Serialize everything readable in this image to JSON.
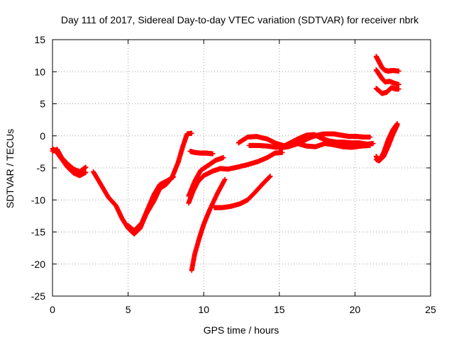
{
  "chart_data": {
    "type": "scatter",
    "title": "Day 111 of 2017, Sidereal Day-to-day VTEC variation (SDTVAR) for receiver nbrk",
    "xlabel": "GPS time / hours",
    "ylabel": "SDTVAR / TECUs",
    "xlim": [
      0,
      25
    ],
    "ylim": [
      -25,
      15
    ],
    "xticks": [
      "0",
      "5",
      "10",
      "15",
      "20",
      "25"
    ],
    "yticks": [
      "15",
      "10",
      "5",
      "0",
      "-5",
      "-10",
      "-15",
      "-20",
      "-25"
    ],
    "grid": true,
    "marker": "plus",
    "colors": {
      "series": "#ff0000",
      "grid": "#a0a0a0",
      "axis": "#000000"
    },
    "series": [
      {
        "x": [
          0.0,
          0.3,
          0.6,
          1.0,
          1.4,
          1.8,
          2.2
        ],
        "y": [
          -2.0,
          -2.6,
          -3.6,
          -4.9,
          -5.8,
          -6.2,
          -5.7
        ]
      },
      {
        "x": [
          0.0,
          0.3,
          0.6,
          1.0,
          1.4,
          1.8,
          2.2
        ],
        "y": [
          -2.4,
          -2.1,
          -3.4,
          -4.4,
          -5.2,
          -5.6,
          -4.9
        ]
      },
      {
        "x": [
          2.7,
          3.2,
          3.7,
          4.2,
          4.6,
          5.0,
          5.4,
          5.8,
          6.2,
          6.7,
          7.1,
          7.5,
          7.9,
          8.3,
          8.6,
          8.9,
          9.2
        ],
        "y": [
          -5.6,
          -7.6,
          -9.6,
          -10.9,
          -12.9,
          -14.4,
          -15.3,
          -14.4,
          -12.2,
          -10.2,
          -8.2,
          -7.6,
          -6.5,
          -4.2,
          -1.8,
          0.3,
          0.4
        ]
      },
      {
        "x": [
          5.0,
          5.4,
          5.9,
          6.3,
          6.7,
          7.1,
          7.6,
          8.0
        ],
        "y": [
          -14.0,
          -14.8,
          -13.6,
          -11.4,
          -9.2,
          -7.6,
          -7.0,
          -6.4
        ]
      },
      {
        "x": [
          9.0,
          9.3,
          9.6,
          10.0,
          10.6,
          11.1,
          11.6,
          12.2,
          12.9,
          13.6,
          14.2,
          14.7,
          15.2
        ],
        "y": [
          -10.5,
          -8.6,
          -7.2,
          -6.2,
          -5.5,
          -5.1,
          -5.2,
          -4.9,
          -4.5,
          -4.0,
          -3.4,
          -2.7,
          -2.6
        ]
      },
      {
        "x": [
          9.0,
          9.4,
          9.8,
          10.3,
          10.8,
          11.3
        ],
        "y": [
          -9.4,
          -7.1,
          -5.4,
          -4.6,
          -3.8,
          -3.4
        ]
      },
      {
        "x": [
          9.1,
          9.4,
          9.8,
          10.2,
          10.6
        ],
        "y": [
          -2.4,
          -2.6,
          -2.7,
          -2.7,
          -2.8
        ]
      },
      {
        "x": [
          9.2,
          9.4,
          9.7,
          10.0,
          10.4,
          10.9,
          11.4
        ],
        "y": [
          -21.0,
          -18.5,
          -16.0,
          -13.8,
          -11.5,
          -9.0,
          -6.8
        ]
      },
      {
        "x": [
          10.7,
          11.2,
          11.8,
          12.4,
          12.9,
          13.4,
          13.9,
          14.4
        ],
        "y": [
          -11.2,
          -11.2,
          -11.0,
          -10.6,
          -10.0,
          -8.8,
          -7.5,
          -6.3
        ]
      },
      {
        "x": [
          12.3,
          12.9,
          13.5,
          14.2,
          14.8,
          15.4,
          16.0,
          16.5,
          17.0,
          17.5,
          18.0,
          18.6,
          19.1,
          19.6,
          20.1,
          20.6,
          21.0
        ],
        "y": [
          -1.1,
          -0.2,
          -0.1,
          -0.5,
          -1.2,
          -1.6,
          -1.4,
          -0.9,
          -0.3,
          0.1,
          0.3,
          0.3,
          0.1,
          -0.1,
          -0.1,
          -0.2,
          -0.2
        ]
      },
      {
        "x": [
          13.0,
          13.6,
          14.2,
          14.8,
          15.3,
          15.8,
          16.3,
          16.8,
          17.3,
          17.8,
          18.3,
          18.8,
          19.3,
          19.8,
          20.3,
          20.8,
          21.2
        ],
        "y": [
          -1.5,
          -1.5,
          -1.6,
          -1.8,
          -1.6,
          -1.0,
          -0.4,
          0.1,
          0.2,
          -0.4,
          -0.8,
          -1.0,
          -1.0,
          -1.1,
          -1.1,
          -1.3,
          -1.2
        ]
      },
      {
        "x": [
          15.0,
          15.6,
          16.2,
          16.8,
          17.4,
          18.0,
          18.6,
          19.2,
          19.8,
          20.4,
          21.0
        ],
        "y": [
          -1.9,
          -1.7,
          -1.2,
          -1.6,
          -1.7,
          -1.2,
          -1.4,
          -1.7,
          -1.8,
          -1.6,
          -1.5
        ]
      },
      {
        "x": [
          21.4,
          21.6,
          21.9,
          22.2,
          22.5,
          22.8
        ],
        "y": [
          -3.7,
          -3.9,
          -3.2,
          -1.6,
          0.2,
          1.7
        ]
      },
      {
        "x": [
          21.4,
          21.6,
          21.9,
          22.2,
          22.5,
          22.8
        ],
        "y": [
          -3.2,
          -3.9,
          -2.6,
          -0.6,
          0.9,
          1.9
        ]
      },
      {
        "x": [
          21.4,
          21.6,
          21.8,
          22.0,
          22.2,
          22.5,
          22.9
        ],
        "y": [
          12.4,
          11.5,
          10.6,
          10.2,
          10.1,
          10.2,
          10.1
        ]
      },
      {
        "x": [
          21.4,
          21.6,
          21.8,
          22.0,
          22.3,
          22.6,
          22.9
        ],
        "y": [
          10.3,
          9.6,
          8.9,
          8.4,
          8.5,
          8.2,
          8.0
        ]
      },
      {
        "x": [
          21.4,
          21.6,
          21.8,
          22.1,
          22.4,
          22.7,
          22.9
        ],
        "y": [
          7.4,
          7.0,
          6.6,
          6.8,
          7.5,
          7.3,
          7.3
        ]
      }
    ]
  }
}
